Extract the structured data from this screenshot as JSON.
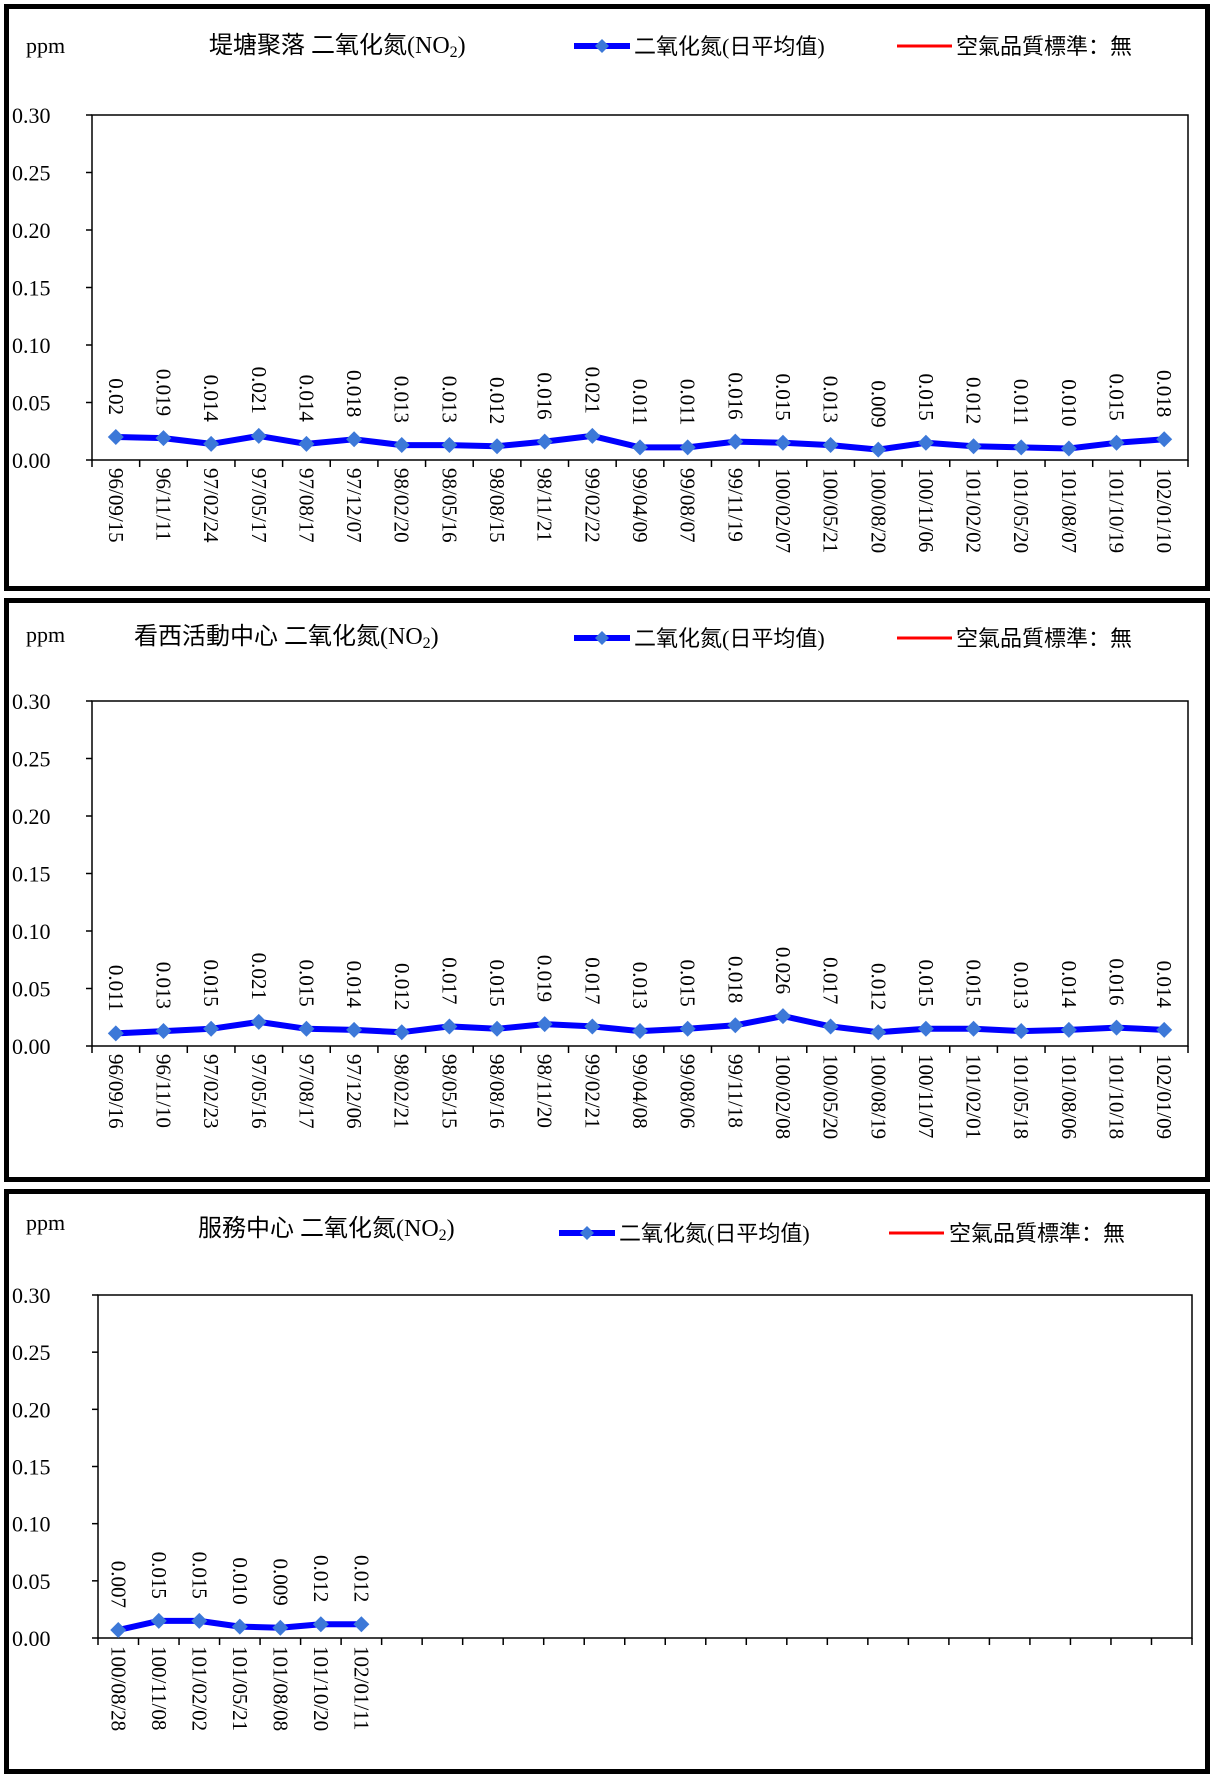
{
  "chart_data": [
    {
      "type": "line",
      "title": "堤塘聚落 二氧化氮(NO",
      "title_sub": "2",
      "title_close": ")",
      "ylabel": "ppm",
      "ylim": [
        0,
        0.3
      ],
      "yticks": [
        "0.00",
        "0.05",
        "0.10",
        "0.15",
        "0.20",
        "0.25",
        "0.30"
      ],
      "grid": false,
      "legend_position": "top",
      "legend": {
        "series_label": "二氧化氮(日平均值)",
        "standard_label": "空氣品質標準：無"
      },
      "series_color": "#0000ff",
      "marker_color": "#3c78d8",
      "standard_color": "#ff0000",
      "categories": [
        "96/09/15",
        "96/11/11",
        "97/02/24",
        "97/05/17",
        "97/08/17",
        "97/12/07",
        "98/02/20",
        "98/05/16",
        "98/08/15",
        "98/11/21",
        "99/02/22",
        "99/04/09",
        "99/08/07",
        "99/11/19",
        "100/02/07",
        "100/05/21",
        "100/08/20",
        "100/11/06",
        "101/02/02",
        "101/05/20",
        "101/08/07",
        "101/10/19",
        "102/01/10"
      ],
      "values": [
        0.02,
        0.019,
        0.014,
        0.021,
        0.014,
        0.018,
        0.013,
        0.013,
        0.012,
        0.016,
        0.021,
        0.011,
        0.011,
        0.016,
        0.015,
        0.013,
        0.009,
        0.015,
        0.012,
        0.011,
        0.01,
        0.015,
        0.018
      ],
      "data_labels": [
        "0.02",
        "0.019",
        "0.014",
        "0.021",
        "0.014",
        "0.018",
        "0.013",
        "0.013",
        "0.012",
        "0.016",
        "0.021",
        "0.011",
        "0.011",
        "0.016",
        "0.015",
        "0.013",
        "0.009",
        "0.015",
        "0.012",
        "0.011",
        "0.010",
        "0.015",
        "0.018"
      ],
      "slots": 23
    },
    {
      "type": "line",
      "title": "看西活動中心  二氧化氮(NO",
      "title_sub": "2",
      "title_close": ")",
      "ylabel": "ppm",
      "ylim": [
        0,
        0.3
      ],
      "yticks": [
        "0.00",
        "0.05",
        "0.10",
        "0.15",
        "0.20",
        "0.25",
        "0.30"
      ],
      "grid": false,
      "legend_position": "top",
      "legend": {
        "series_label": "二氧化氮(日平均值)",
        "standard_label": "空氣品質標準：無"
      },
      "series_color": "#0000ff",
      "marker_color": "#3c78d8",
      "standard_color": "#ff0000",
      "categories": [
        "96/09/16",
        "96/11/10",
        "97/02/23",
        "97/05/16",
        "97/08/17",
        "97/12/06",
        "98/02/21",
        "98/05/15",
        "98/08/16",
        "98/11/20",
        "99/02/21",
        "99/04/08",
        "99/08/06",
        "99/11/18",
        "100/02/08",
        "100/05/20",
        "100/08/19",
        "100/11/07",
        "101/02/01",
        "101/05/18",
        "101/08/06",
        "101/10/18",
        "102/01/09"
      ],
      "values": [
        0.011,
        0.013,
        0.015,
        0.021,
        0.015,
        0.014,
        0.012,
        0.017,
        0.015,
        0.019,
        0.017,
        0.013,
        0.015,
        0.018,
        0.026,
        0.017,
        0.012,
        0.015,
        0.015,
        0.013,
        0.014,
        0.016,
        0.014
      ],
      "data_labels": [
        "0.011",
        "0.013",
        "0.015",
        "0.021",
        "0.015",
        "0.014",
        "0.012",
        "0.017",
        "0.015",
        "0.019",
        "0.017",
        "0.013",
        "0.015",
        "0.018",
        "0.026",
        "0.017",
        "0.012",
        "0.015",
        "0.015",
        "0.013",
        "0.014",
        "0.016",
        "0.014"
      ],
      "slots": 23
    },
    {
      "type": "line",
      "title": "服務中心  二氧化氮(NO",
      "title_sub": "2",
      "title_close": ")",
      "ylabel": "ppm",
      "ylim": [
        0,
        0.3
      ],
      "yticks": [
        "0.00",
        "0.05",
        "0.10",
        "0.15",
        "0.20",
        "0.25",
        "0.30"
      ],
      "grid": false,
      "legend_position": "top",
      "legend": {
        "series_label": "二氧化氮(日平均值)",
        "standard_label": "空氣品質標準：無"
      },
      "series_color": "#0000ff",
      "marker_color": "#3c78d8",
      "standard_color": "#ff0000",
      "categories": [
        "100/08/28",
        "100/11/08",
        "101/02/02",
        "101/05/21",
        "101/08/08",
        "101/10/20",
        "102/01/11"
      ],
      "values": [
        0.007,
        0.015,
        0.015,
        0.01,
        0.009,
        0.012,
        0.012
      ],
      "data_labels": [
        "0.007",
        "0.015",
        "0.015",
        "0.010",
        "0.009",
        "0.012",
        "0.012"
      ],
      "slots": 27
    }
  ]
}
